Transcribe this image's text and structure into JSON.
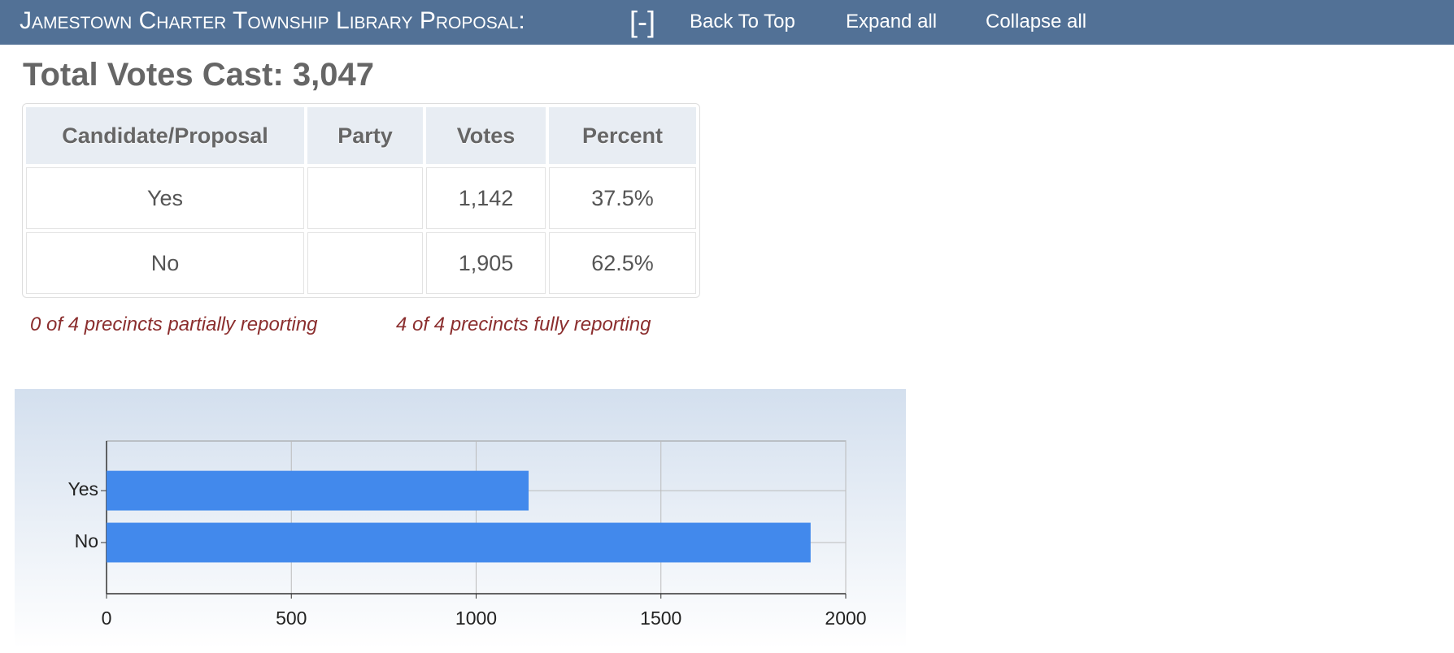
{
  "header": {
    "title": "Jamestown Charter Township Library Proposal:",
    "toggle": "[-]",
    "links": [
      "Back To Top",
      "Expand all",
      "Collapse all"
    ]
  },
  "total_votes": "Total Votes Cast: 3,047",
  "table": {
    "columns": [
      "Candidate/Proposal",
      "Party",
      "Votes",
      "Percent"
    ],
    "rows": [
      [
        "Yes",
        "",
        "1,142",
        "37.5%"
      ],
      [
        "No",
        "",
        "1,905",
        "62.5%"
      ]
    ]
  },
  "reporting": [
    "0 of 4 precincts partially reporting",
    "4 of 4 precincts fully reporting"
  ],
  "chart_data": {
    "type": "bar",
    "orientation": "horizontal",
    "categories": [
      "Yes",
      "No"
    ],
    "values": [
      1142,
      1905
    ],
    "color": "#4289ec",
    "xlim": [
      0,
      2000
    ],
    "xticks": [
      0,
      500,
      1000,
      1500,
      2000
    ],
    "grid": true
  }
}
